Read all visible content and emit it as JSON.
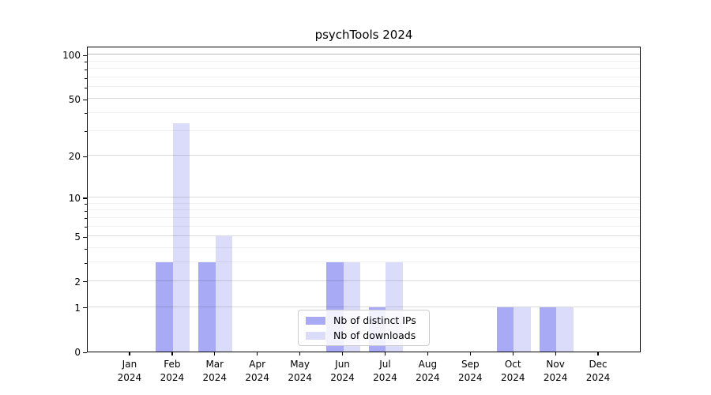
{
  "chart_data": {
    "type": "bar",
    "title": "psychTools 2024",
    "y_scale": "log10(value+1)",
    "categories": [
      "Jan",
      "Feb",
      "Mar",
      "Apr",
      "May",
      "Jun",
      "Jul",
      "Aug",
      "Sep",
      "Oct",
      "Nov",
      "Dec"
    ],
    "x_tick_second_line": "2024",
    "series": [
      {
        "name": "Nb of distinct IPs",
        "color": "#a8aaf5",
        "values": [
          0,
          3,
          3,
          0,
          0,
          3,
          1,
          0,
          0,
          1,
          1,
          0
        ]
      },
      {
        "name": "Nb of downloads",
        "color": "#dadcf9",
        "values": [
          0,
          34,
          5,
          0,
          0,
          3,
          3,
          0,
          0,
          1,
          1,
          0
        ]
      }
    ],
    "y_major_ticks": [
      0,
      1,
      2,
      5,
      10,
      20,
      50,
      100
    ],
    "y_minor_gridlines": [
      3,
      4,
      6,
      7,
      8,
      9,
      30,
      40,
      60,
      70,
      80,
      90
    ],
    "ylim": [
      0,
      115
    ],
    "grid": true,
    "legend_position": "lower center"
  }
}
